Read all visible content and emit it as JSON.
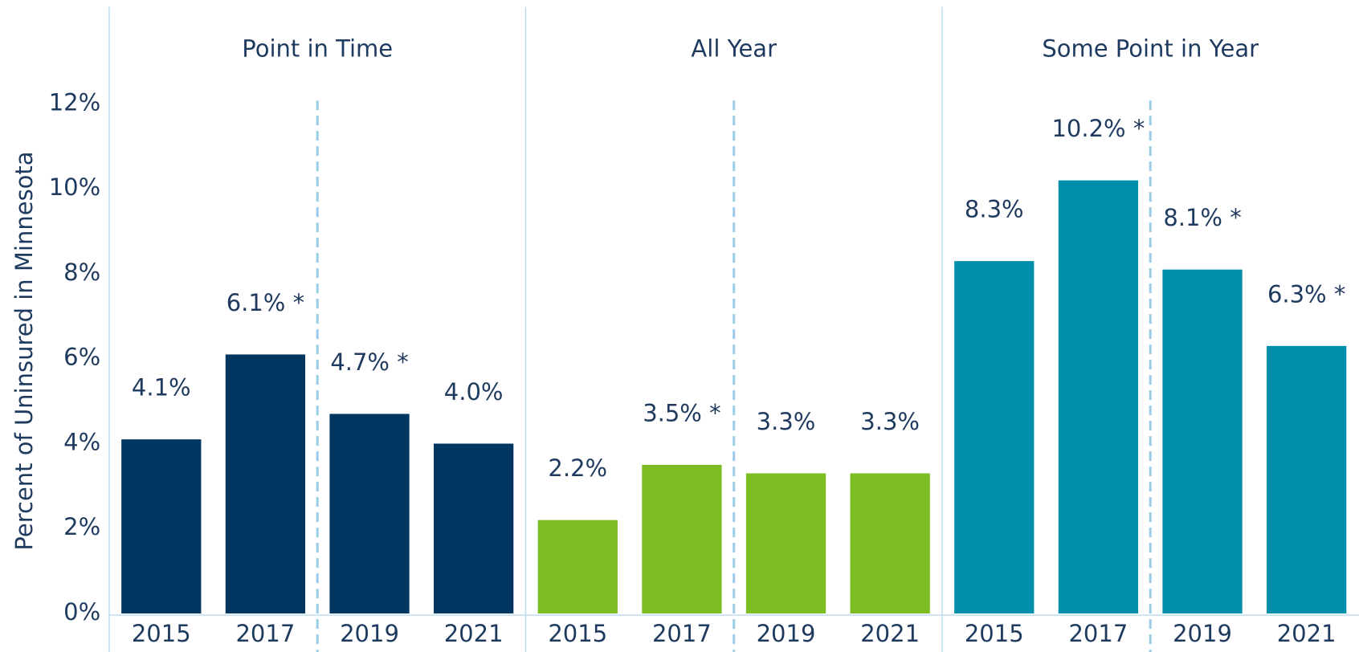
{
  "chart_data": {
    "type": "bar",
    "y_label": "Percent of Uninsured in Minnesota",
    "ylim": [
      0,
      12
    ],
    "yticks": [
      {
        "value": 0,
        "label": "0%"
      },
      {
        "value": 2,
        "label": "2%"
      },
      {
        "value": 4,
        "label": "4%"
      },
      {
        "value": 6,
        "label": "6%"
      },
      {
        "value": 8,
        "label": "8%"
      },
      {
        "value": 10,
        "label": "10%"
      },
      {
        "value": 12,
        "label": "12%"
      }
    ],
    "panels": [
      {
        "title": "Point in Time",
        "color": "#003660",
        "categories": [
          "2015",
          "2017",
          "2019",
          "2021"
        ],
        "values": [
          4.1,
          6.1,
          4.7,
          4.0
        ],
        "value_labels": [
          "4.1%",
          "6.1% *",
          "4.7% *",
          "4.0%"
        ]
      },
      {
        "title": "All Year",
        "color": "#7bbd22",
        "categories": [
          "2015",
          "2017",
          "2019",
          "2021"
        ],
        "values": [
          2.2,
          3.5,
          3.3,
          3.3
        ],
        "value_labels": [
          "2.2%",
          "3.5% *",
          "3.3%",
          "3.3%"
        ]
      },
      {
        "title": "Some Point in Year",
        "color": "#008fab",
        "categories": [
          "2015",
          "2017",
          "2019",
          "2021"
        ],
        "values": [
          8.3,
          10.2,
          8.1,
          6.3
        ],
        "value_labels": [
          "8.3%",
          "10.2% *",
          "8.1% *",
          "6.3% *"
        ]
      }
    ]
  }
}
